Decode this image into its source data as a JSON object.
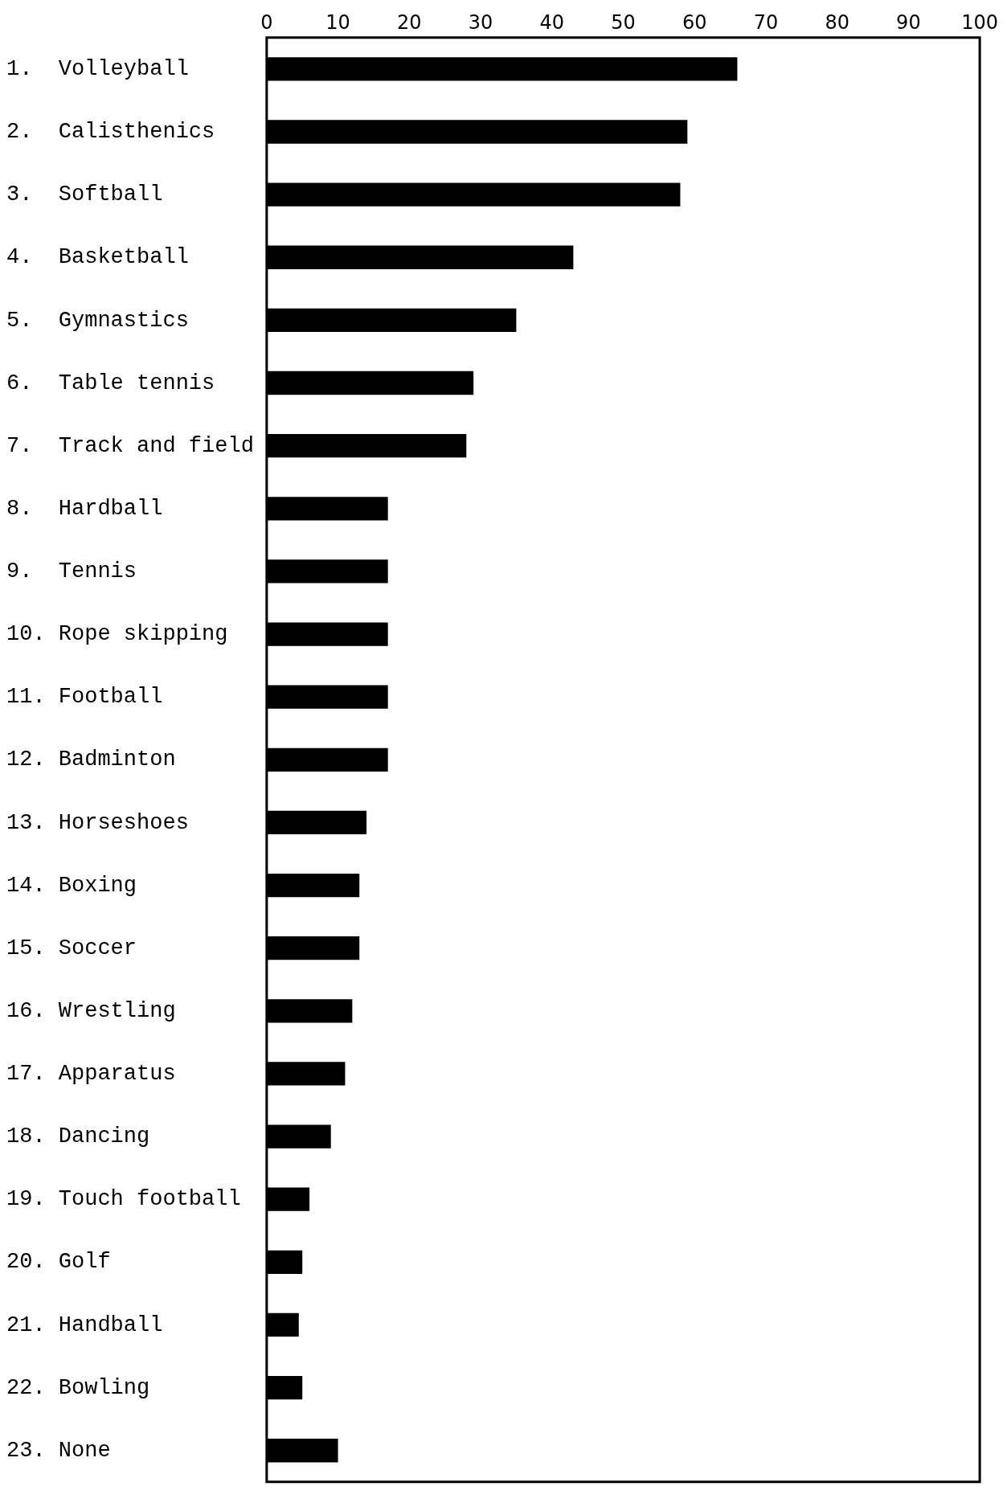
{
  "chart_data": {
    "type": "bar",
    "orientation": "horizontal",
    "categories": [
      "1.  Volleyball",
      "2.  Calisthenics",
      "3.  Softball",
      "4.  Basketball",
      "5.  Gymnastics",
      "6.  Table tennis",
      "7.  Track and field",
      "8.  Hardball",
      "9.  Tennis",
      "10. Rope skipping",
      "11. Football",
      "12. Badminton",
      "13. Horseshoes",
      "14. Boxing",
      "15. Soccer",
      "16. Wrestling",
      "17. Apparatus",
      "18. Dancing",
      "19. Touch football",
      "20. Golf",
      "21. Handball",
      "22. Bowling",
      "23. None"
    ],
    "values": [
      66,
      59,
      58,
      43,
      35,
      29,
      28,
      17,
      17,
      17,
      17,
      17,
      14,
      13,
      13,
      12,
      11,
      9,
      6,
      5,
      4.5,
      5,
      10
    ],
    "color": "#000000",
    "xlim": [
      0,
      100
    ],
    "xticks": [
      0,
      10,
      20,
      30,
      40,
      50,
      60,
      70,
      80,
      90,
      100
    ],
    "grid": false
  }
}
